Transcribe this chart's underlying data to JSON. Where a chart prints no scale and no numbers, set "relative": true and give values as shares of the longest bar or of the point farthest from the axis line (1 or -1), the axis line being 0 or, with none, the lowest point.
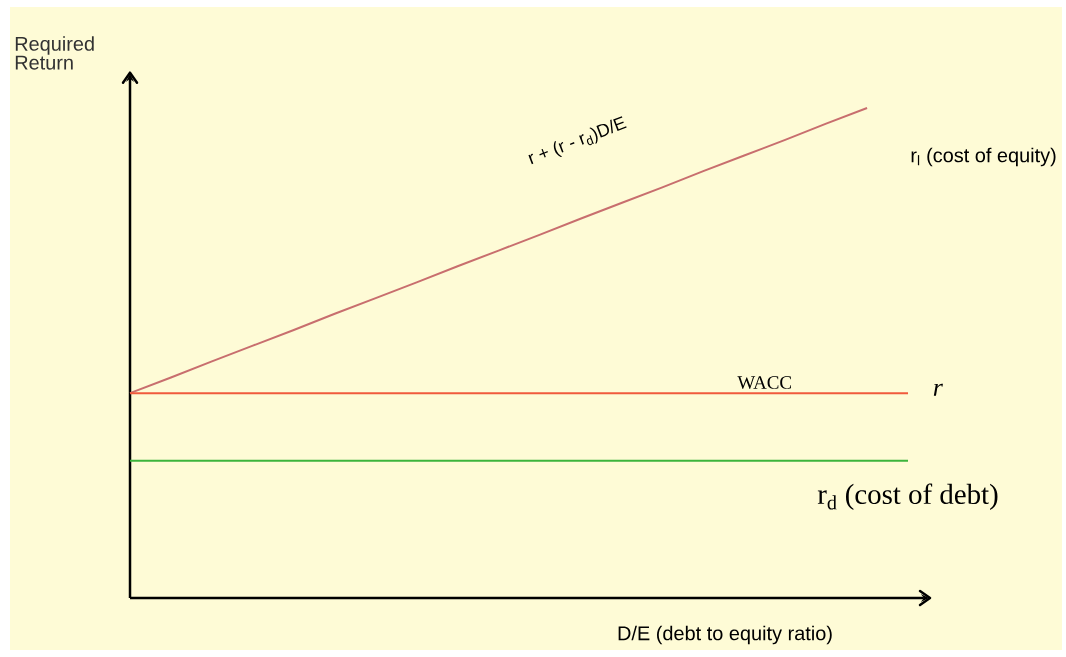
{
  "chart_data": {
    "type": "line",
    "relative": true,
    "xlabel": "D/E (debt to equity ratio)",
    "ylabel": "Required Return",
    "categories": [
      null,
      null,
      null,
      null,
      null,
      null,
      null,
      null,
      null,
      null,
      null,
      null,
      null,
      null,
      null,
      null,
      null,
      null,
      null,
      null
    ],
    "series": [
      {
        "name": "r$_{l}$ (cost of equity)",
        "color": "#c86e6e",
        "values": [
          0.418,
          0.45,
          0.483,
          0.515,
          0.547,
          0.58,
          0.612,
          0.644,
          0.677,
          0.709,
          0.741,
          0.774,
          0.806,
          0.838,
          0.871,
          0.903,
          0.935,
          0.968,
          1.0,
          null
        ]
      },
      {
        "name": "WACC",
        "color": "#f05a3c",
        "values": [
          0.418,
          0.418,
          0.418,
          0.418,
          0.418,
          0.418,
          0.418,
          0.418,
          0.418,
          0.418,
          0.418,
          0.418,
          0.418,
          0.418,
          0.418,
          0.418,
          0.418,
          0.418,
          0.418,
          0.418
        ]
      },
      {
        "name": "r$_{d}$ (cost of debt)",
        "color": "#3cb43c",
        "values": [
          0.28,
          0.28,
          0.28,
          0.28,
          0.28,
          0.28,
          0.28,
          0.28,
          0.28,
          0.28,
          0.28,
          0.28,
          0.28,
          0.28,
          0.28,
          0.28,
          0.28,
          0.28,
          0.28,
          0.28
        ]
      }
    ],
    "annotations": [
      "r + (r - r$_{d}$)D/E",
      "r"
    ],
    "marker": "none",
    "line_style": "solid"
  }
}
